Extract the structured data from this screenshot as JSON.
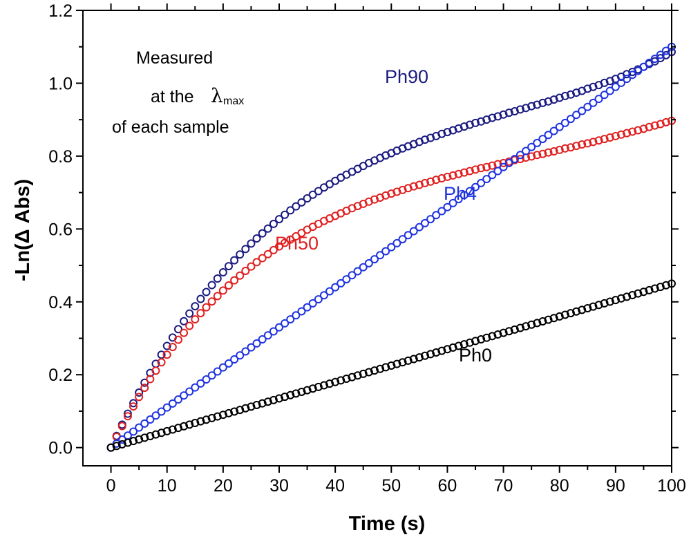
{
  "chart_data": {
    "type": "scatter",
    "xlabel": "Time (s)",
    "ylabel": "-Ln(Δ Abs)",
    "xlim": [
      -5,
      100
    ],
    "ylim": [
      -0.05,
      1.2
    ],
    "xticks": [
      0,
      10,
      20,
      30,
      40,
      50,
      60,
      70,
      80,
      90,
      100
    ],
    "yticks": [
      0.0,
      0.2,
      0.4,
      0.6,
      0.8,
      1.0,
      1.2
    ],
    "xtick_labels": [
      "0",
      "10",
      "20",
      "30",
      "40",
      "50",
      "60",
      "70",
      "80",
      "90",
      "100"
    ],
    "ytick_labels": [
      "0.0",
      "0.2",
      "0.4",
      "0.6",
      "0.8",
      "1.0",
      "1.2"
    ],
    "marker": "open-circle",
    "x": [
      0,
      1,
      2,
      3,
      4,
      5,
      6,
      7,
      8,
      9,
      10,
      11,
      12,
      13,
      14,
      15,
      16,
      17,
      18,
      19,
      20,
      21,
      22,
      23,
      24,
      25,
      26,
      27,
      28,
      29,
      30,
      31,
      32,
      33,
      34,
      35,
      36,
      37,
      38,
      39,
      40,
      41,
      42,
      43,
      44,
      45,
      46,
      47,
      48,
      49,
      50,
      51,
      52,
      53,
      54,
      55,
      56,
      57,
      58,
      59,
      60,
      61,
      62,
      63,
      64,
      65,
      66,
      67,
      68,
      69,
      70,
      71,
      72,
      73,
      74,
      75,
      76,
      77,
      78,
      79,
      80,
      81,
      82,
      83,
      84,
      85,
      86,
      87,
      88,
      89,
      90,
      91,
      92,
      93,
      94,
      95,
      96,
      97,
      98,
      99,
      100
    ],
    "series": [
      {
        "name": "Ph90",
        "color": "#1a1a80",
        "values": [
          0.0,
          0.032,
          0.063,
          0.093,
          0.122,
          0.151,
          0.178,
          0.205,
          0.23,
          0.255,
          0.279,
          0.302,
          0.325,
          0.347,
          0.368,
          0.388,
          0.408,
          0.427,
          0.446,
          0.464,
          0.481,
          0.498,
          0.514,
          0.53,
          0.545,
          0.56,
          0.574,
          0.588,
          0.601,
          0.614,
          0.627,
          0.639,
          0.651,
          0.662,
          0.673,
          0.684,
          0.694,
          0.704,
          0.714,
          0.723,
          0.732,
          0.741,
          0.749,
          0.757,
          0.765,
          0.773,
          0.781,
          0.788,
          0.795,
          0.802,
          0.808,
          0.815,
          0.821,
          0.827,
          0.833,
          0.839,
          0.845,
          0.85,
          0.855,
          0.861,
          0.866,
          0.871,
          0.876,
          0.881,
          0.886,
          0.891,
          0.895,
          0.9,
          0.905,
          0.909,
          0.914,
          0.919,
          0.923,
          0.928,
          0.932,
          0.937,
          0.941,
          0.946,
          0.95,
          0.955,
          0.96,
          0.965,
          0.969,
          0.974,
          0.979,
          0.985,
          0.99,
          0.995,
          1.001,
          1.006,
          1.012,
          1.018,
          1.025,
          1.031,
          1.038,
          1.045,
          1.053,
          1.06,
          1.069,
          1.077,
          1.086
        ]
      },
      {
        "name": "Ph50",
        "color": "#e02020",
        "values": [
          0.0,
          0.03,
          0.059,
          0.086,
          0.113,
          0.139,
          0.164,
          0.188,
          0.211,
          0.234,
          0.255,
          0.276,
          0.296,
          0.315,
          0.334,
          0.352,
          0.369,
          0.385,
          0.401,
          0.416,
          0.431,
          0.445,
          0.459,
          0.472,
          0.485,
          0.497,
          0.509,
          0.52,
          0.531,
          0.542,
          0.552,
          0.562,
          0.571,
          0.58,
          0.589,
          0.598,
          0.606,
          0.614,
          0.622,
          0.629,
          0.636,
          0.643,
          0.65,
          0.657,
          0.663,
          0.669,
          0.675,
          0.681,
          0.686,
          0.692,
          0.697,
          0.702,
          0.707,
          0.712,
          0.717,
          0.721,
          0.726,
          0.73,
          0.735,
          0.739,
          0.743,
          0.747,
          0.751,
          0.755,
          0.759,
          0.763,
          0.767,
          0.77,
          0.774,
          0.778,
          0.781,
          0.785,
          0.789,
          0.792,
          0.796,
          0.799,
          0.803,
          0.806,
          0.81,
          0.813,
          0.817,
          0.821,
          0.824,
          0.828,
          0.832,
          0.835,
          0.839,
          0.843,
          0.847,
          0.851,
          0.855,
          0.859,
          0.863,
          0.867,
          0.871,
          0.875,
          0.88,
          0.884,
          0.888,
          0.893,
          0.897
        ]
      },
      {
        "name": "Ph4",
        "color": "#1f33e0",
        "values": [
          0.0,
          0.011,
          0.022,
          0.033,
          0.044,
          0.055,
          0.066,
          0.077,
          0.088,
          0.099,
          0.11,
          0.121,
          0.132,
          0.143,
          0.154,
          0.165,
          0.176,
          0.187,
          0.198,
          0.209,
          0.22,
          0.231,
          0.242,
          0.253,
          0.264,
          0.275,
          0.286,
          0.297,
          0.308,
          0.319,
          0.33,
          0.341,
          0.352,
          0.363,
          0.374,
          0.385,
          0.396,
          0.407,
          0.418,
          0.429,
          0.44,
          0.451,
          0.462,
          0.473,
          0.484,
          0.495,
          0.506,
          0.517,
          0.528,
          0.539,
          0.55,
          0.561,
          0.572,
          0.583,
          0.594,
          0.605,
          0.616,
          0.627,
          0.638,
          0.649,
          0.66,
          0.671,
          0.682,
          0.693,
          0.704,
          0.715,
          0.726,
          0.737,
          0.748,
          0.759,
          0.77,
          0.781,
          0.792,
          0.803,
          0.814,
          0.825,
          0.836,
          0.847,
          0.858,
          0.869,
          0.88,
          0.891,
          0.902,
          0.913,
          0.924,
          0.935,
          0.946,
          0.957,
          0.968,
          0.979,
          0.99,
          1.001,
          1.012,
          1.023,
          1.034,
          1.045,
          1.056,
          1.067,
          1.078,
          1.089,
          1.1
        ]
      },
      {
        "name": "Ph0",
        "color": "#000000",
        "values": [
          0.0,
          0.0045,
          0.009,
          0.0135,
          0.018,
          0.0225,
          0.027,
          0.0315,
          0.036,
          0.0405,
          0.045,
          0.0495,
          0.054,
          0.0585,
          0.063,
          0.0675,
          0.072,
          0.0765,
          0.081,
          0.0855,
          0.09,
          0.0945,
          0.099,
          0.1035,
          0.108,
          0.1125,
          0.117,
          0.1215,
          0.126,
          0.1305,
          0.135,
          0.1395,
          0.144,
          0.1485,
          0.153,
          0.1575,
          0.162,
          0.1665,
          0.171,
          0.1755,
          0.18,
          0.1845,
          0.189,
          0.1935,
          0.198,
          0.2025,
          0.207,
          0.2115,
          0.216,
          0.2205,
          0.225,
          0.2295,
          0.234,
          0.2385,
          0.243,
          0.2475,
          0.252,
          0.2565,
          0.261,
          0.2655,
          0.27,
          0.2745,
          0.279,
          0.2835,
          0.288,
          0.2925,
          0.297,
          0.3015,
          0.306,
          0.3105,
          0.315,
          0.3195,
          0.324,
          0.3285,
          0.333,
          0.3375,
          0.342,
          0.3465,
          0.351,
          0.3555,
          0.36,
          0.3645,
          0.369,
          0.3735,
          0.378,
          0.3825,
          0.387,
          0.3915,
          0.396,
          0.4005,
          0.405,
          0.4095,
          0.414,
          0.4185,
          0.423,
          0.4275,
          0.432,
          0.4365,
          0.441,
          0.4455,
          0.45
        ]
      }
    ],
    "annotation": {
      "line1": "Measured",
      "line2": "at the",
      "lambda": "λ",
      "sub": "max",
      "line3": "of each sample"
    }
  }
}
